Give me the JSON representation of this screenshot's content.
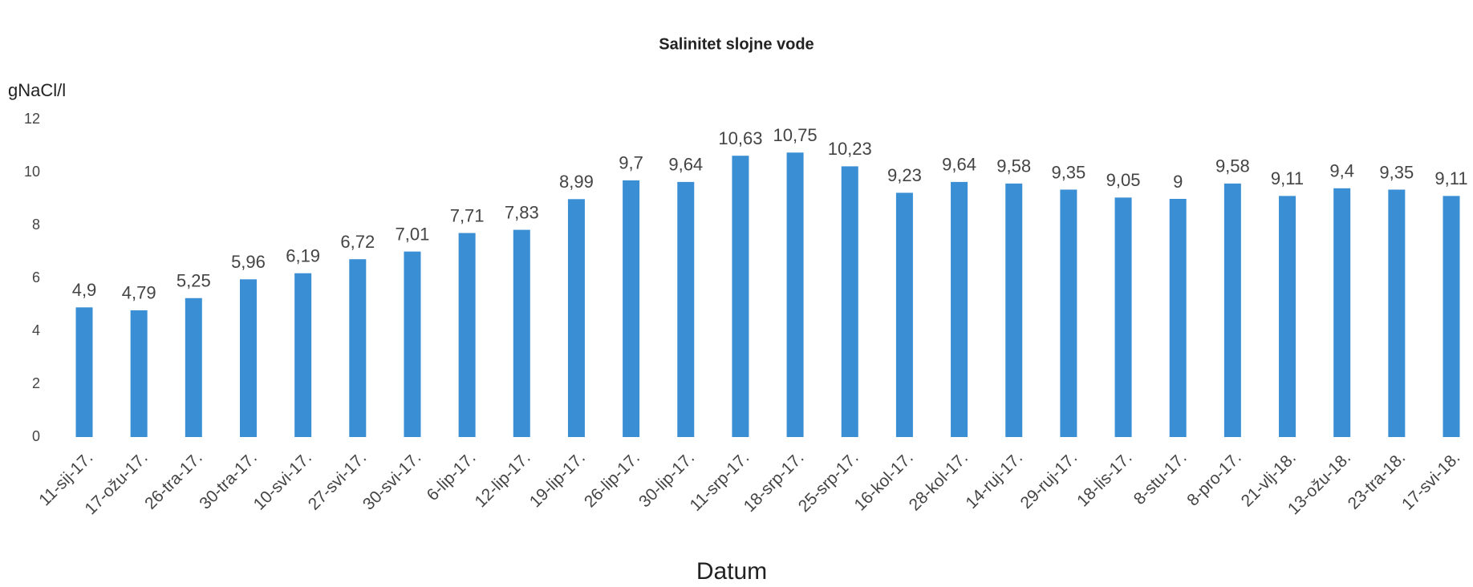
{
  "chart_data": {
    "type": "bar",
    "title": "Salinitet slojne vode",
    "ylabel": "gNaCl/l",
    "xlabel": "Datum",
    "categories": [
      "11-sij-17.",
      "17-ožu-17.",
      "26-tra-17.",
      "30-tra-17.",
      "10-svi-17.",
      "27-svi-17.",
      "30-svi-17.",
      "6-lip-17.",
      "12-lip-17.",
      "19-lip-17.",
      "26-lip-17.",
      "30-lip-17.",
      "11-srp-17.",
      "18-srp-17.",
      "25-srp-17.",
      "16-kol-17.",
      "28-kol-17.",
      "14-ruj-17.",
      "29-ruj-17.",
      "18-lis-17.",
      "8-stu-17.",
      "8-pro-17.",
      "21-vlj-18.",
      "13-ožu-18.",
      "23-tra-18.",
      "17-svi-18."
    ],
    "values": [
      4.9,
      4.79,
      5.25,
      5.96,
      6.19,
      6.72,
      7.01,
      7.71,
      7.83,
      8.99,
      9.7,
      9.64,
      10.63,
      10.75,
      10.23,
      9.23,
      9.64,
      9.58,
      9.35,
      9.05,
      9,
      9.58,
      9.11,
      9.4,
      9.35,
      9.11
    ],
    "value_labels": [
      "4,9",
      "4,79",
      "5,25",
      "5,96",
      "6,19",
      "6,72",
      "7,01",
      "7,71",
      "7,83",
      "8,99",
      "9,7",
      "9,64",
      "10,63",
      "10,75",
      "10,23",
      "9,23",
      "9,64",
      "9,58",
      "9,35",
      "9,05",
      "9",
      "9,58",
      "9,11",
      "9,4",
      "9,35",
      "9,11"
    ],
    "color": "#3a8fd4",
    "ylim": [
      0,
      12
    ],
    "yticks": [
      0,
      2,
      4,
      6,
      8,
      10,
      12
    ],
    "grid": false
  }
}
